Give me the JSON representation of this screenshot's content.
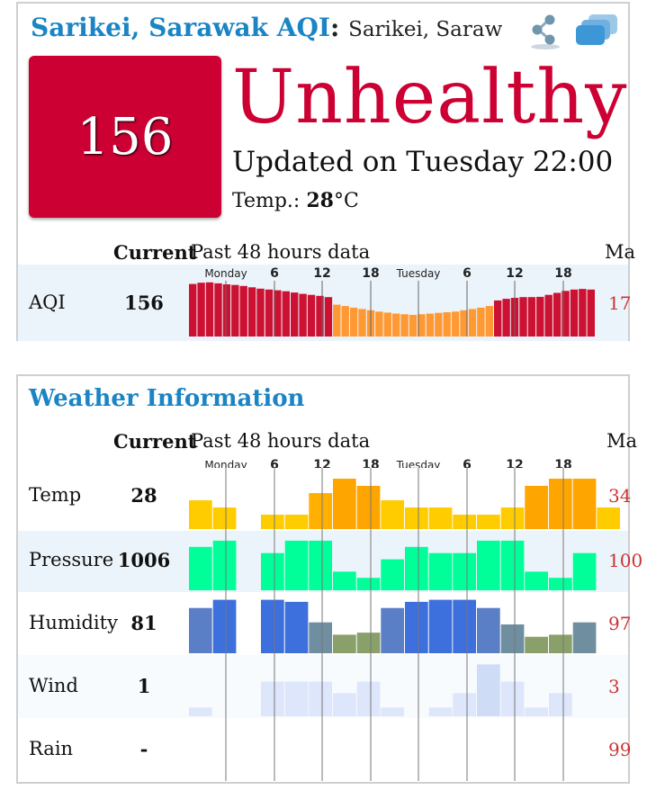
{
  "aqi_card": {
    "title": "Sarikei, Sarawak AQI",
    "colon": ":",
    "subtitle": "Sarikei, Saraw",
    "aqi_value": "156",
    "status": "Unhealthy",
    "updated": "Updated on Tuesday 22:00",
    "temp_label": "Temp.: ",
    "temp_value": "28",
    "temp_unit": "°C",
    "colors": {
      "unhealthy": "#cc0033",
      "sensitive": "#ff9933",
      "title": "#1b84c4"
    }
  },
  "table": {
    "current_header": "Current",
    "past_header": "Past 48 hours data",
    "max_header": "Ma",
    "time_labels": [
      "Monday",
      "6",
      "12",
      "18",
      "Tuesday",
      "6",
      "12",
      "18"
    ]
  },
  "aqi_row": {
    "label": "AQI",
    "current": "156",
    "max": "17",
    "bars": [
      160,
      164,
      165,
      162,
      159,
      157,
      154,
      150,
      146,
      143,
      141,
      138,
      134,
      130,
      127,
      124,
      120,
      97,
      93,
      88,
      84,
      80,
      76,
      73,
      70,
      68,
      66,
      68,
      70,
      72,
      74,
      76,
      80,
      84,
      88,
      93,
      110,
      115,
      118,
      120,
      120,
      121,
      127,
      133,
      139,
      143,
      145,
      143
    ]
  },
  "weather": {
    "title": "Weather Information",
    "current_header": "Current",
    "past_header": "Past 48 hours data",
    "max_header": "Ma",
    "time_labels": [
      "Monday",
      "6",
      "12",
      "18",
      "Tuesday",
      "6",
      "12",
      "18"
    ],
    "rows": [
      {
        "key": "temp",
        "label": "Temp",
        "current": "28",
        "max": "34",
        "bars": [
          28,
          27,
          null,
          26,
          26,
          29,
          31,
          30,
          28,
          27,
          27,
          26,
          26,
          27,
          30,
          31,
          31,
          27
        ]
      },
      {
        "key": "pressure",
        "label": "Pressure",
        "current": "1006",
        "max": "100",
        "bars": [
          1005,
          1006,
          null,
          1004,
          1006,
          1006,
          1001,
          1000,
          1003,
          1005,
          1004,
          1004,
          1006,
          1006,
          1001,
          1000,
          1004
        ]
      },
      {
        "key": "humidity",
        "label": "Humidity",
        "current": "81",
        "max": "97",
        "bars": [
          92,
          96,
          null,
          96,
          95,
          85,
          79,
          80,
          92,
          95,
          96,
          96,
          92,
          84,
          78,
          79,
          85
        ]
      },
      {
        "key": "wind",
        "label": "Wind",
        "current": "1",
        "max": "3",
        "bars": [
          0.3,
          null,
          null,
          1.2,
          1.2,
          1.2,
          0.8,
          1.2,
          0.3,
          null,
          0.3,
          0.8,
          1.8,
          1.2,
          0.3,
          0.8,
          null
        ]
      },
      {
        "key": "rain",
        "label": "Rain",
        "current": "-",
        "max": "99",
        "bars": []
      }
    ]
  }
}
